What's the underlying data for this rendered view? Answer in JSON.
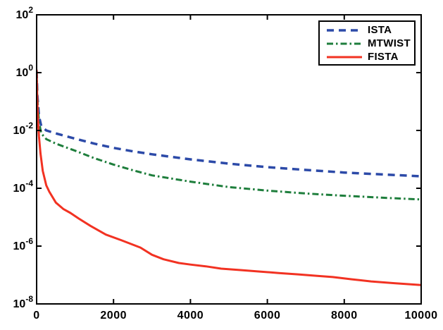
{
  "figure": {
    "background_color": "#ffffff",
    "axis_color": "#000000"
  },
  "chart_data": {
    "type": "line",
    "title": "",
    "xlabel": "",
    "ylabel": "",
    "grid": false,
    "xlim": [
      0,
      10000
    ],
    "x_ticks": [
      0,
      2000,
      4000,
      6000,
      8000,
      10000
    ],
    "x_tick_labels": [
      "0",
      "2000",
      "4000",
      "6000",
      "8000",
      "10000"
    ],
    "y_scale": "log",
    "ylim": [
      1e-08,
      100
    ],
    "y_tick_exponents": [
      2,
      0,
      -2,
      -4,
      -6,
      -8
    ],
    "legend": {
      "position": "top-right",
      "border_color": "#000000",
      "background_color": "#ffffff",
      "entries": [
        "ISTA",
        "MTWIST",
        "FISTA"
      ]
    },
    "series": [
      {
        "name": "ISTA",
        "color": "#2c4aa8",
        "style": "dashed",
        "line_width": 3.5,
        "points": [
          [
            0,
            1.12
          ],
          [
            20,
            0.16
          ],
          [
            60,
            0.032
          ],
          [
            120,
            0.014
          ],
          [
            250,
            0.01
          ],
          [
            500,
            0.0079
          ],
          [
            1000,
            0.0052
          ],
          [
            1500,
            0.0035
          ],
          [
            2000,
            0.0025
          ],
          [
            2500,
            0.0019
          ],
          [
            3000,
            0.0015
          ],
          [
            4000,
            0.001
          ],
          [
            5000,
            0.00071
          ],
          [
            6000,
            0.00054
          ],
          [
            7000,
            0.00043
          ],
          [
            8000,
            0.00035
          ],
          [
            9000,
            0.0003
          ],
          [
            10000,
            0.00026
          ]
        ]
      },
      {
        "name": "MTWIST",
        "color": "#1e7e3c",
        "style": "dash-dot",
        "line_width": 3,
        "points": [
          [
            0,
            1.12
          ],
          [
            20,
            0.126
          ],
          [
            60,
            0.02
          ],
          [
            120,
            0.0079
          ],
          [
            250,
            0.005
          ],
          [
            500,
            0.0035
          ],
          [
            1000,
            0.002
          ],
          [
            1500,
            0.0011
          ],
          [
            2000,
            0.00066
          ],
          [
            2500,
            0.00042
          ],
          [
            3000,
            0.00028
          ],
          [
            4000,
            0.00017
          ],
          [
            5000,
            0.00011
          ],
          [
            6000,
            8.3e-05
          ],
          [
            7000,
            6.6e-05
          ],
          [
            8000,
            5.5e-05
          ],
          [
            9000,
            4.7e-05
          ],
          [
            10000,
            4.1e-05
          ]
        ]
      },
      {
        "name": "FISTA",
        "color": "#f23222",
        "style": "solid",
        "line_width": 3,
        "points": [
          [
            0,
            1.26
          ],
          [
            15,
            0.16
          ],
          [
            30,
            0.032
          ],
          [
            60,
            0.0063
          ],
          [
            100,
            0.0016
          ],
          [
            160,
            0.0004
          ],
          [
            250,
            0.000126
          ],
          [
            330,
            7.6e-05
          ],
          [
            500,
            3.2e-05
          ],
          [
            700,
            1.9e-05
          ],
          [
            880,
            1.4e-05
          ],
          [
            1100,
            8.9e-06
          ],
          [
            1400,
            5e-06
          ],
          [
            1800,
            2.5e-06
          ],
          [
            2200,
            1.6e-06
          ],
          [
            2700,
            8.9e-07
          ],
          [
            3000,
            5e-07
          ],
          [
            3300,
            3.5e-07
          ],
          [
            3700,
            2.6e-07
          ],
          [
            4000,
            2.3e-07
          ],
          [
            4400,
            2e-07
          ],
          [
            4800,
            1.66e-07
          ],
          [
            5300,
            1.48e-07
          ],
          [
            5800,
            1.32e-07
          ],
          [
            6300,
            1.17e-07
          ],
          [
            6800,
            1.05e-07
          ],
          [
            7300,
            9.3e-08
          ],
          [
            7700,
            8.5e-08
          ],
          [
            8200,
            7.1e-08
          ],
          [
            8700,
            6e-08
          ],
          [
            9300,
            5.2e-08
          ],
          [
            10000,
            4.5e-08
          ]
        ]
      }
    ]
  }
}
